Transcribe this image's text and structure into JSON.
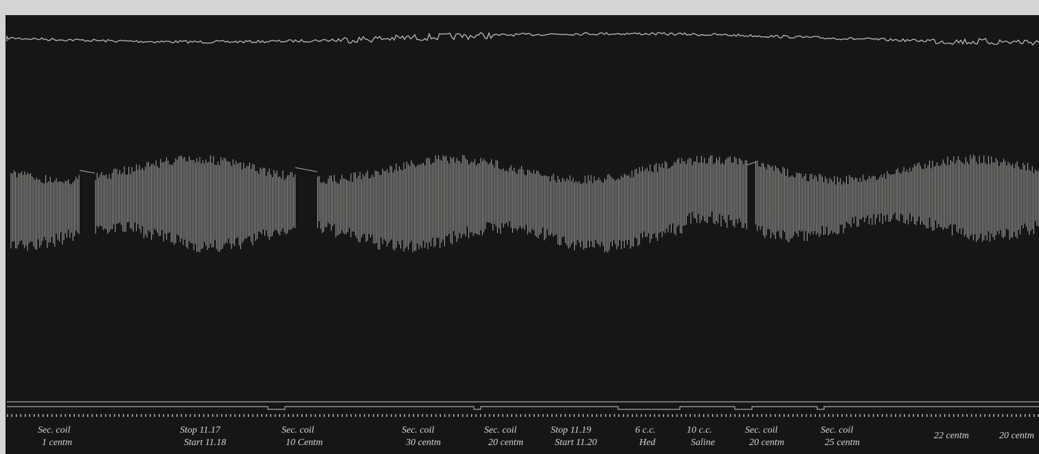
{
  "annotations": [
    {
      "lines": [
        "Sec. coil",
        "1 centm"
      ]
    },
    {
      "lines": [
        "Stop 11.17",
        "Start 11.18"
      ]
    },
    {
      "lines": [
        "Sec. coil",
        "10 Centm"
      ]
    },
    {
      "lines": [
        "Sec. coil",
        "30 centm"
      ]
    },
    {
      "lines": [
        "Sec. coil",
        "20 centm"
      ]
    },
    {
      "lines": [
        "Stop 11.19",
        "Start 11.20"
      ]
    },
    {
      "lines": [
        "6 c.c.",
        "Hed"
      ]
    },
    {
      "lines": [
        "10 c.c.",
        "Saline"
      ]
    },
    {
      "lines": [
        "Sec. coil",
        "20 centm"
      ]
    },
    {
      "lines": [
        "Sec. coil",
        "25 centm"
      ]
    },
    {
      "lines": [
        "22 centm"
      ]
    },
    {
      "lines": [
        "20 centm"
      ]
    }
  ]
}
